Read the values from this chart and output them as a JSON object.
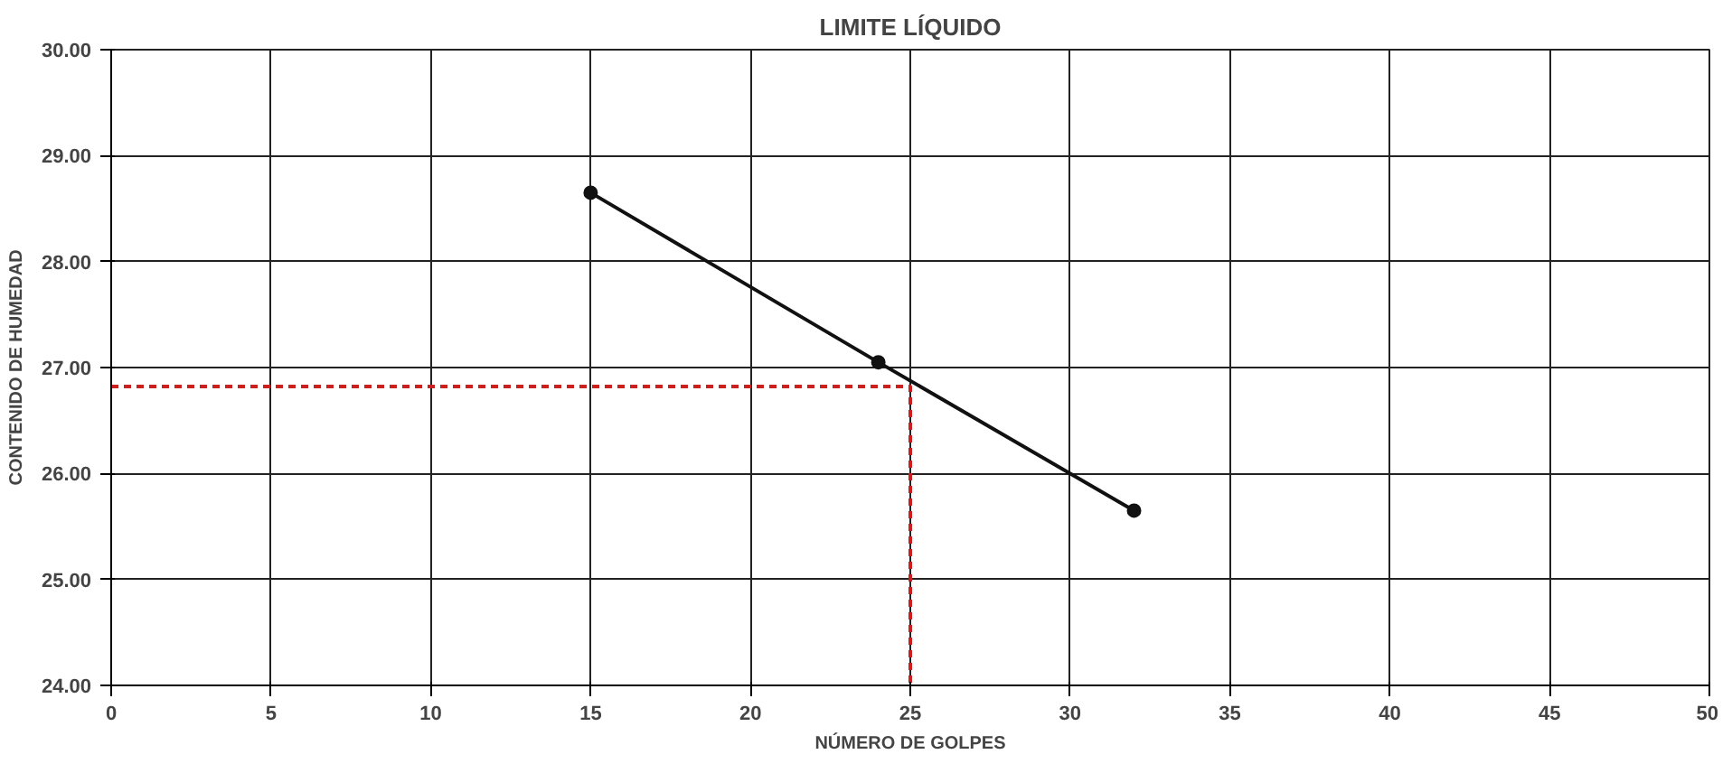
{
  "chart_data": {
    "type": "line",
    "title": "LIMITE LÍQUIDO",
    "xlabel": "NÚMERO DE GOLPES",
    "ylabel": "CONTENIDO DE HUMEDAD",
    "xlim": [
      0,
      50
    ],
    "xticks": [
      0,
      5,
      10,
      15,
      20,
      25,
      30,
      35,
      40,
      45,
      50
    ],
    "ylim": [
      24,
      30
    ],
    "yticks": [
      {
        "value": 24,
        "label": "24.00"
      },
      {
        "value": 25,
        "label": "25.00"
      },
      {
        "value": 26,
        "label": "26.00"
      },
      {
        "value": 27,
        "label": "27.00"
      },
      {
        "value": 28,
        "label": "28.00"
      },
      {
        "value": 29,
        "label": "29.00"
      },
      {
        "value": 30,
        "label": "30.00"
      }
    ],
    "grid": true,
    "series": [
      {
        "color": "#111111",
        "x": [
          15,
          24,
          32
        ],
        "values": [
          28.65,
          27.05,
          25.65
        ],
        "marker": "circle",
        "line_style": "solid"
      },
      {
        "color": "#cc1f1f",
        "x": [
          0,
          25,
          25
        ],
        "values": [
          26.82,
          26.82,
          24
        ],
        "marker": "none",
        "line_style": "dashed"
      }
    ]
  }
}
